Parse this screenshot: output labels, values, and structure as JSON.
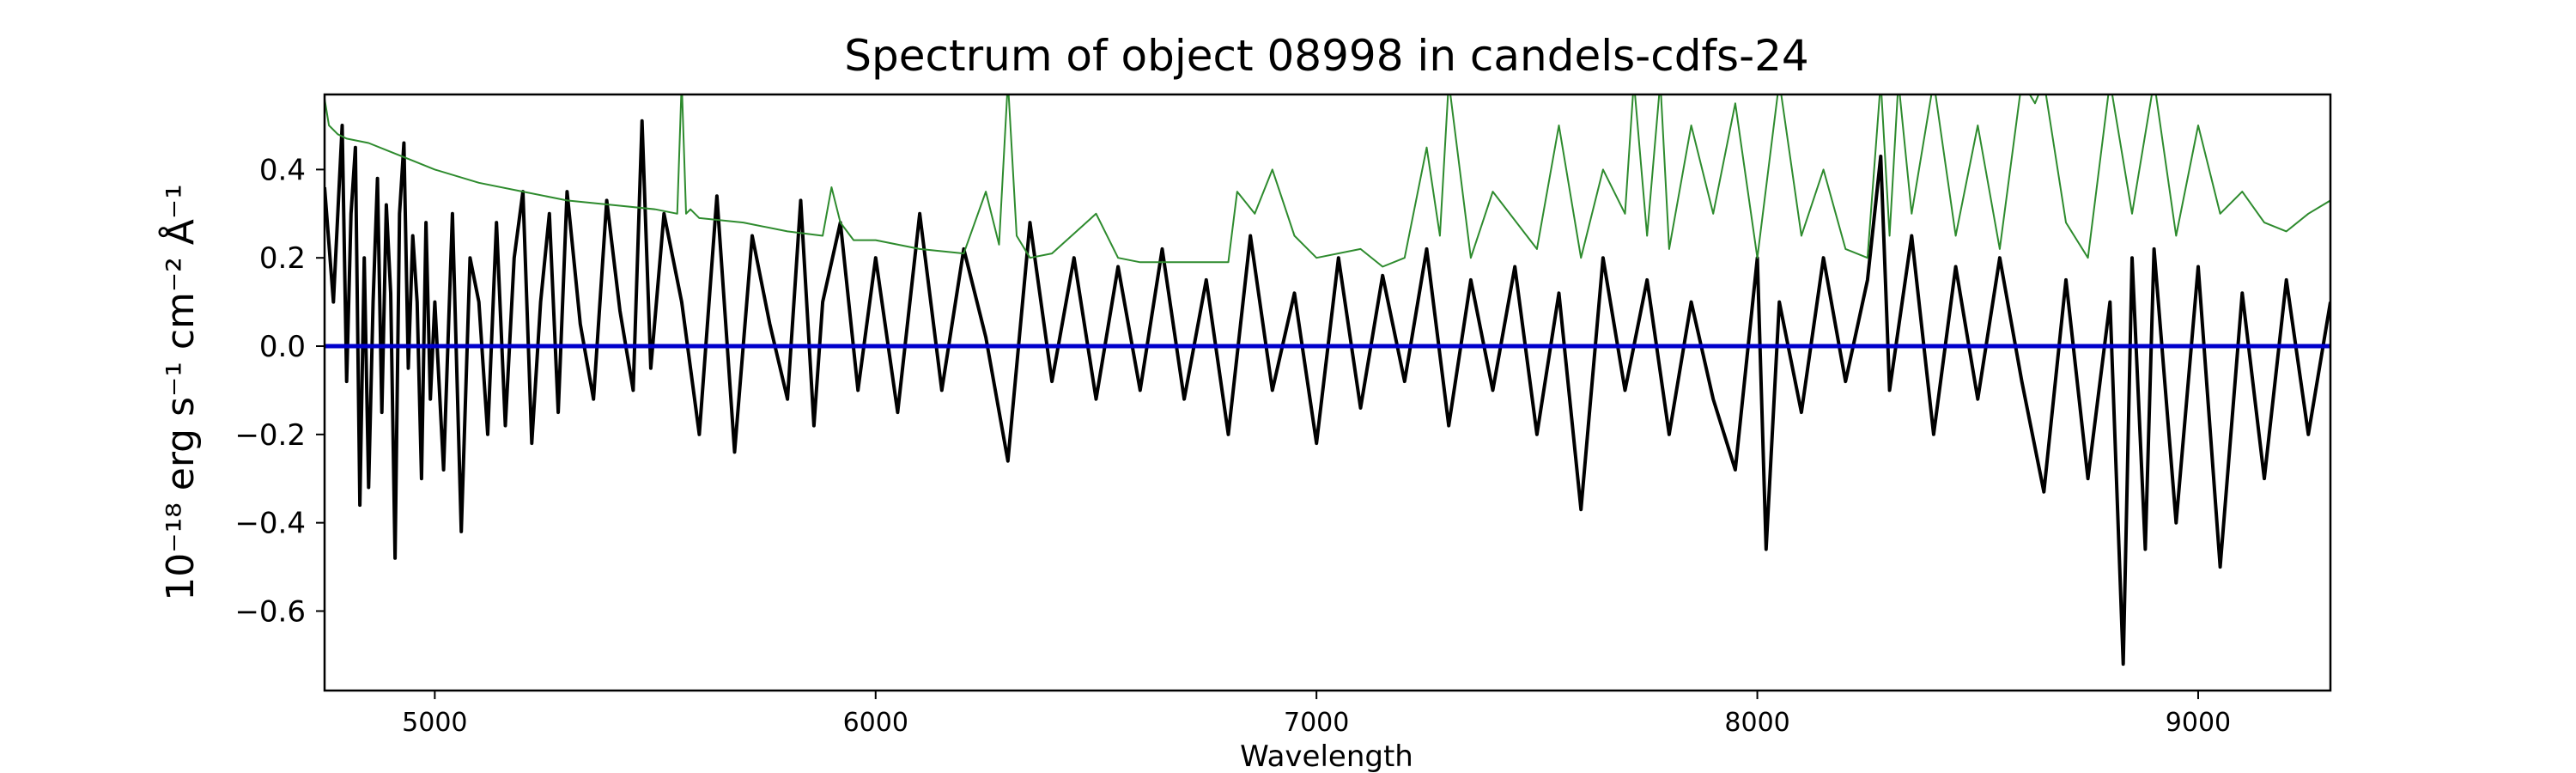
{
  "chart_data": {
    "type": "line",
    "title": "Spectrum of object 08998 in candels-cdfs-24",
    "xlabel": "Wavelength",
    "ylabel": "10⁻¹⁸ erg s⁻¹ cm⁻² Å⁻¹",
    "xlim": [
      4750,
      9300
    ],
    "ylim": [
      -0.78,
      0.57
    ],
    "xticks": [
      5000,
      6000,
      7000,
      8000,
      9000
    ],
    "xtick_labels": [
      "5000",
      "6000",
      "7000",
      "8000",
      "9000"
    ],
    "yticks": [
      -0.6,
      -0.4,
      -0.2,
      0.0,
      0.2,
      0.4
    ],
    "ytick_labels": [
      "−0.6",
      "−0.4",
      "−0.2",
      "0.0",
      "0.2",
      "0.4"
    ],
    "grid": false,
    "series": [
      {
        "color": "#000000",
        "x": [
          4750,
          4770,
          4790,
          4800,
          4810,
          4820,
          4830,
          4840,
          4850,
          4860,
          4870,
          4880,
          4890,
          4900,
          4910,
          4920,
          4930,
          4940,
          4950,
          4960,
          4970,
          4980,
          4990,
          5000,
          5020,
          5040,
          5060,
          5080,
          5100,
          5120,
          5140,
          5160,
          5180,
          5200,
          5220,
          5240,
          5260,
          5280,
          5300,
          5330,
          5360,
          5390,
          5420,
          5450,
          5470,
          5490,
          5520,
          5560,
          5600,
          5640,
          5680,
          5720,
          5760,
          5800,
          5830,
          5860,
          5880,
          5920,
          5960,
          6000,
          6050,
          6100,
          6150,
          6200,
          6250,
          6300,
          6350,
          6400,
          6450,
          6500,
          6550,
          6600,
          6650,
          6700,
          6750,
          6800,
          6850,
          6900,
          6950,
          7000,
          7050,
          7100,
          7150,
          7200,
          7250,
          7300,
          7350,
          7400,
          7450,
          7500,
          7550,
          7600,
          7650,
          7700,
          7750,
          7800,
          7850,
          7900,
          7950,
          8000,
          8020,
          8050,
          8100,
          8150,
          8200,
          8250,
          8280,
          8300,
          8350,
          8400,
          8450,
          8500,
          8550,
          8600,
          8650,
          8700,
          8750,
          8800,
          8830,
          8850,
          8880,
          8900,
          8950,
          9000,
          9050,
          9100,
          9150,
          9200,
          9250,
          9300
        ],
        "y": [
          0.36,
          0.1,
          0.5,
          -0.08,
          0.3,
          0.45,
          -0.36,
          0.2,
          -0.32,
          0.1,
          0.38,
          -0.15,
          0.32,
          0.12,
          -0.48,
          0.3,
          0.46,
          -0.05,
          0.25,
          0.1,
          -0.3,
          0.28,
          -0.12,
          0.1,
          -0.28,
          0.3,
          -0.42,
          0.2,
          0.1,
          -0.2,
          0.28,
          -0.18,
          0.2,
          0.35,
          -0.22,
          0.1,
          0.3,
          -0.15,
          0.35,
          0.05,
          -0.12,
          0.33,
          0.08,
          -0.1,
          0.51,
          -0.05,
          0.3,
          0.1,
          -0.2,
          0.34,
          -0.24,
          0.25,
          0.05,
          -0.12,
          0.33,
          -0.18,
          0.1,
          0.28,
          -0.1,
          0.2,
          -0.15,
          0.3,
          -0.1,
          0.22,
          0.02,
          -0.26,
          0.28,
          -0.08,
          0.2,
          -0.12,
          0.18,
          -0.1,
          0.22,
          -0.12,
          0.15,
          -0.2,
          0.25,
          -0.1,
          0.12,
          -0.22,
          0.2,
          -0.14,
          0.16,
          -0.08,
          0.22,
          -0.18,
          0.15,
          -0.1,
          0.18,
          -0.2,
          0.12,
          -0.37,
          0.2,
          -0.1,
          0.15,
          -0.2,
          0.1,
          -0.12,
          -0.28,
          0.2,
          -0.46,
          0.1,
          -0.15,
          0.2,
          -0.08,
          0.15,
          0.43,
          -0.1,
          0.25,
          -0.2,
          0.18,
          -0.12,
          0.2,
          -0.08,
          -0.33,
          0.15,
          -0.3,
          0.1,
          -0.72,
          0.2,
          -0.46,
          0.22,
          -0.4,
          0.18,
          -0.5,
          0.12,
          -0.3,
          0.15,
          -0.2,
          0.1
        ],
        "linewidth": 4
      },
      {
        "color": "#2e8b2e",
        "x": [
          4750,
          4760,
          4780,
          4800,
          4850,
          4900,
          4950,
          5000,
          5100,
          5200,
          5300,
          5400,
          5500,
          5550,
          5560,
          5570,
          5580,
          5600,
          5700,
          5800,
          5880,
          5900,
          5920,
          5950,
          6000,
          6100,
          6200,
          6250,
          6280,
          6300,
          6320,
          6350,
          6400,
          6500,
          6550,
          6600,
          6700,
          6800,
          6820,
          6860,
          6900,
          6950,
          7000,
          7100,
          7150,
          7200,
          7250,
          7280,
          7300,
          7350,
          7400,
          7500,
          7550,
          7600,
          7650,
          7700,
          7720,
          7750,
          7780,
          7800,
          7850,
          7900,
          7950,
          8000,
          8050,
          8100,
          8150,
          8200,
          8250,
          8280,
          8300,
          8320,
          8350,
          8400,
          8450,
          8500,
          8550,
          8600,
          8630,
          8650,
          8700,
          8750,
          8800,
          8850,
          8900,
          8950,
          9000,
          9050,
          9100,
          9150,
          9200,
          9250,
          9300
        ],
        "y": [
          0.56,
          0.5,
          0.48,
          0.47,
          0.46,
          0.44,
          0.42,
          0.4,
          0.37,
          0.35,
          0.33,
          0.32,
          0.31,
          0.3,
          0.6,
          0.3,
          0.31,
          0.29,
          0.28,
          0.26,
          0.25,
          0.36,
          0.28,
          0.24,
          0.24,
          0.22,
          0.21,
          0.35,
          0.23,
          0.6,
          0.25,
          0.2,
          0.21,
          0.3,
          0.2,
          0.19,
          0.19,
          0.19,
          0.35,
          0.3,
          0.4,
          0.25,
          0.2,
          0.22,
          0.18,
          0.2,
          0.45,
          0.25,
          0.6,
          0.2,
          0.35,
          0.22,
          0.5,
          0.2,
          0.4,
          0.3,
          0.6,
          0.25,
          0.6,
          0.22,
          0.5,
          0.3,
          0.55,
          0.2,
          0.6,
          0.25,
          0.4,
          0.22,
          0.2,
          0.6,
          0.25,
          0.6,
          0.3,
          0.6,
          0.25,
          0.5,
          0.22,
          0.6,
          0.55,
          0.6,
          0.28,
          0.2,
          0.6,
          0.3,
          0.6,
          0.25,
          0.5,
          0.3,
          0.35,
          0.28,
          0.26,
          0.3,
          0.33
        ],
        "linewidth": 2
      },
      {
        "color": "#0000cc",
        "x": [
          4750,
          9300
        ],
        "y": [
          0.0,
          0.0
        ],
        "linewidth": 5
      }
    ]
  }
}
